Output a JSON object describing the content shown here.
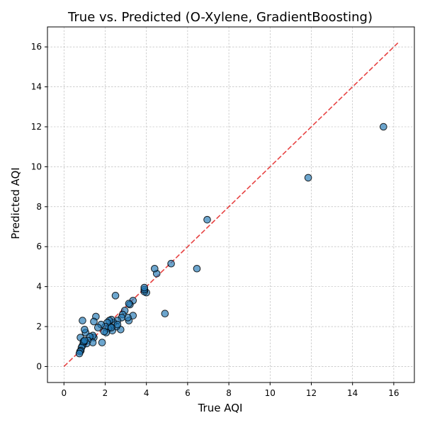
{
  "chart_data": {
    "type": "scatter",
    "title": "True vs. Predicted (O-Xylene, GradientBoosting)",
    "xlabel": "True AQI",
    "ylabel": "Predicted AQI",
    "xlim": [
      -0.8,
      17.0
    ],
    "ylim": [
      -0.8,
      17.0
    ],
    "xticks": [
      "0",
      "2",
      "4",
      "6",
      "8",
      "10",
      "12",
      "14",
      "16"
    ],
    "yticks": [
      "0",
      "2",
      "4",
      "6",
      "8",
      "10",
      "12",
      "14",
      "16"
    ],
    "grid": true,
    "point_color": "#1f77b4",
    "reference_line": {
      "from": [
        0,
        0
      ],
      "to": [
        16.2,
        16.2
      ],
      "color": "#e32222",
      "style": "dashed"
    },
    "points": [
      [
        15.5,
        12.0
      ],
      [
        11.85,
        9.45
      ],
      [
        6.95,
        7.35
      ],
      [
        6.45,
        4.9
      ],
      [
        5.2,
        5.15
      ],
      [
        4.9,
        2.65
      ],
      [
        4.5,
        4.65
      ],
      [
        4.4,
        4.9
      ],
      [
        4.0,
        3.7
      ],
      [
        3.9,
        3.75
      ],
      [
        3.9,
        3.85
      ],
      [
        3.9,
        3.95
      ],
      [
        3.35,
        3.3
      ],
      [
        3.35,
        2.55
      ],
      [
        3.2,
        3.1
      ],
      [
        3.15,
        3.15
      ],
      [
        3.15,
        2.3
      ],
      [
        3.1,
        2.45
      ],
      [
        2.95,
        2.8
      ],
      [
        2.85,
        2.6
      ],
      [
        2.8,
        2.45
      ],
      [
        2.75,
        1.85
      ],
      [
        2.6,
        2.3
      ],
      [
        2.55,
        2.0
      ],
      [
        2.5,
        3.55
      ],
      [
        2.4,
        2.2
      ],
      [
        2.35,
        1.8
      ],
      [
        2.3,
        2.35
      ],
      [
        2.25,
        2.0
      ],
      [
        2.2,
        2.3
      ],
      [
        2.15,
        1.9
      ],
      [
        2.1,
        2.2
      ],
      [
        2.05,
        1.7
      ],
      [
        2.0,
        2.0
      ],
      [
        1.95,
        1.75
      ],
      [
        1.85,
        1.2
      ],
      [
        1.8,
        2.1
      ],
      [
        1.65,
        1.95
      ],
      [
        1.55,
        2.5
      ],
      [
        1.45,
        2.25
      ],
      [
        1.45,
        1.45
      ],
      [
        1.4,
        1.55
      ],
      [
        1.4,
        1.2
      ],
      [
        1.25,
        1.5
      ],
      [
        1.15,
        1.3
      ],
      [
        1.1,
        1.15
      ],
      [
        1.05,
        1.7
      ],
      [
        1.0,
        1.85
      ],
      [
        0.95,
        1.2
      ],
      [
        0.9,
        1.05
      ],
      [
        0.9,
        2.3
      ],
      [
        0.85,
        0.95
      ],
      [
        0.82,
        0.8
      ],
      [
        0.8,
        1.45
      ],
      [
        0.78,
        0.75
      ],
      [
        0.75,
        0.65
      ],
      [
        0.95,
        1.25
      ],
      [
        1.0,
        1.3
      ],
      [
        2.3,
        1.95
      ],
      [
        2.6,
        2.1
      ]
    ]
  }
}
